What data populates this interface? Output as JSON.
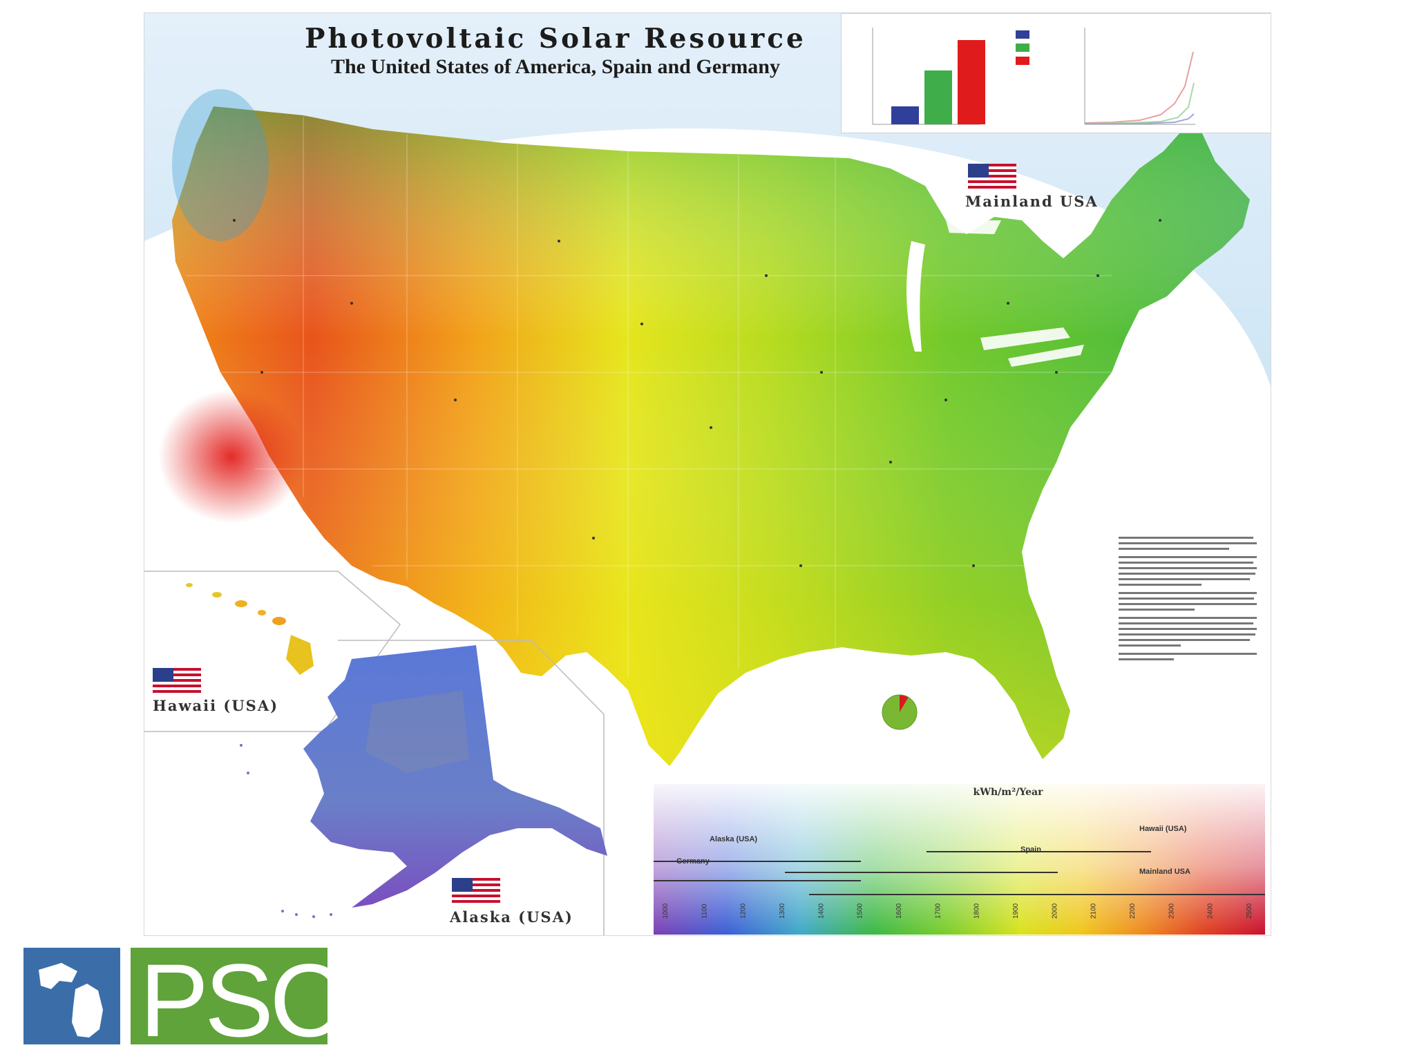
{
  "poster": {
    "title": "Photovoltaic Solar Resource",
    "subtitle": "The United States of America, Spain and Germany"
  },
  "regions": {
    "mainland": "Mainland USA",
    "hawaii": "Hawaii (USA)",
    "alaska": "Alaska (USA)"
  },
  "legend": {
    "unit": "kWh/m²/Year",
    "ticks": [
      "1000",
      "1100",
      "1200",
      "1300",
      "1400",
      "1500",
      "1600",
      "1700",
      "1800",
      "1900",
      "2000",
      "2100",
      "2200",
      "2300",
      "2400",
      "2500"
    ],
    "range_labels": [
      "Alaska (USA)",
      "Germany",
      "Hawaii (USA)",
      "Spain",
      "Mainland USA"
    ],
    "colors": [
      "#7b3fb3",
      "#3b5fd6",
      "#3fa8c8",
      "#3cb843",
      "#7ccd2b",
      "#d8e21c",
      "#f0c51a",
      "#ee8a1e",
      "#e04020",
      "#c8102e"
    ]
  },
  "logo": {
    "text": "PSC",
    "blue": "#3b6ea8",
    "green": "#5fa33a"
  }
}
